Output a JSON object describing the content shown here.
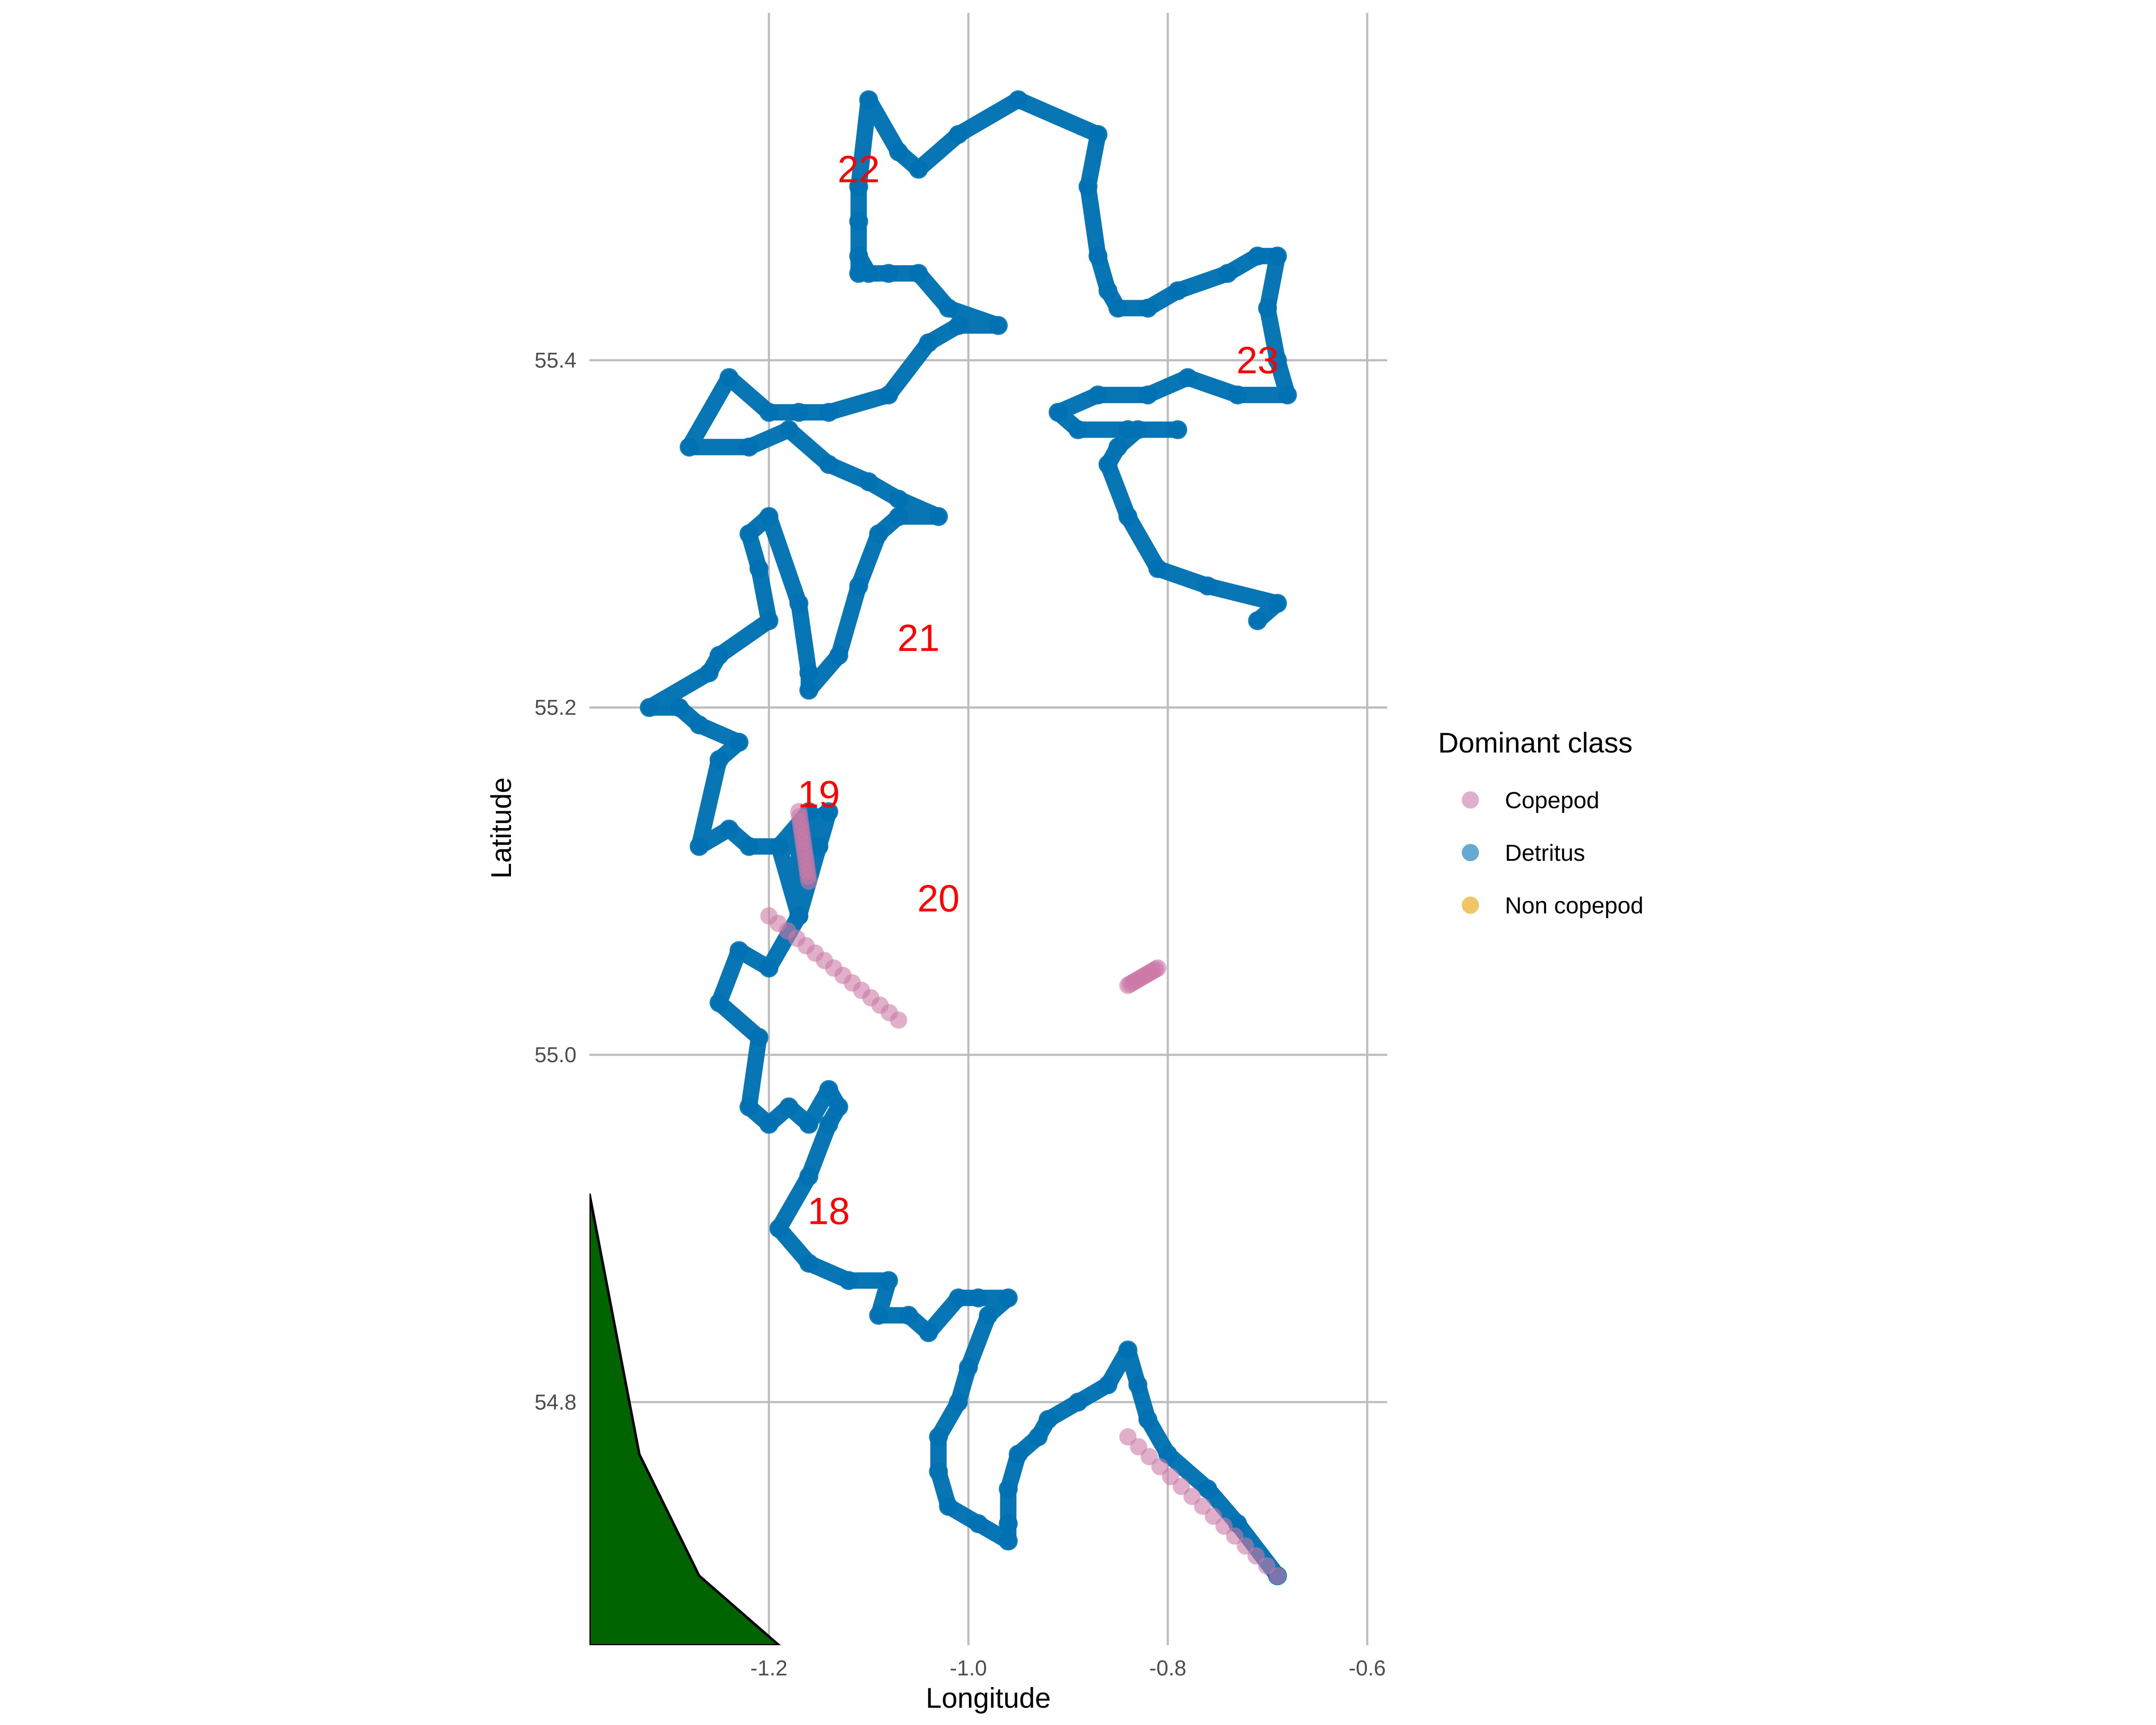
{
  "chart_data": {
    "type": "map-track",
    "xlabel": "Longitude",
    "ylabel": "Latitude",
    "xlim": [
      -1.38,
      -0.58
    ],
    "ylim": [
      54.66,
      55.6
    ],
    "x_ticks": [
      -1.2,
      -1.0,
      -0.8,
      -0.6
    ],
    "x_tick_labels": [
      "-1.2",
      "-1.0",
      "-0.8",
      "-0.6"
    ],
    "y_ticks": [
      54.8,
      55.0,
      55.2,
      55.4
    ],
    "y_tick_labels": [
      "54.8",
      "55.0",
      "55.2",
      "55.4"
    ],
    "grid": true,
    "legend": {
      "title": "Dominant class",
      "position": "right",
      "entries": [
        {
          "label": "Copepod",
          "color": "#cc79a7"
        },
        {
          "label": "Detritus",
          "color": "#0072b2"
        },
        {
          "label": "Non copepod",
          "color": "#e69f00"
        }
      ]
    },
    "track_color": "#0072b2",
    "track": [
      [
        -0.69,
        54.7
      ],
      [
        -0.73,
        54.73
      ],
      [
        -0.76,
        54.75
      ],
      [
        -0.8,
        54.77
      ],
      [
        -0.82,
        54.79
      ],
      [
        -0.83,
        54.81
      ],
      [
        -0.84,
        54.83
      ],
      [
        -0.86,
        54.81
      ],
      [
        -0.89,
        54.8
      ],
      [
        -0.92,
        54.79
      ],
      [
        -0.93,
        54.78
      ],
      [
        -0.95,
        54.77
      ],
      [
        -0.96,
        54.75
      ],
      [
        -0.96,
        54.73
      ],
      [
        -0.96,
        54.72
      ],
      [
        -0.99,
        54.73
      ],
      [
        -1.02,
        54.74
      ],
      [
        -1.03,
        54.76
      ],
      [
        -1.03,
        54.78
      ],
      [
        -1.01,
        54.8
      ],
      [
        -1.0,
        54.82
      ],
      [
        -0.98,
        54.85
      ],
      [
        -0.96,
        54.86
      ],
      [
        -0.99,
        54.86
      ],
      [
        -1.01,
        54.86
      ],
      [
        -1.04,
        54.84
      ],
      [
        -1.06,
        54.85
      ],
      [
        -1.09,
        54.85
      ],
      [
        -1.08,
        54.87
      ],
      [
        -1.12,
        54.87
      ],
      [
        -1.16,
        54.88
      ],
      [
        -1.19,
        54.9
      ],
      [
        -1.16,
        54.93
      ],
      [
        -1.14,
        54.96
      ],
      [
        -1.13,
        54.97
      ],
      [
        -1.14,
        54.98
      ],
      [
        -1.16,
        54.96
      ],
      [
        -1.18,
        54.97
      ],
      [
        -1.2,
        54.96
      ],
      [
        -1.22,
        54.97
      ],
      [
        -1.21,
        55.01
      ],
      [
        -1.25,
        55.03
      ],
      [
        -1.23,
        55.06
      ],
      [
        -1.2,
        55.05
      ],
      [
        -1.17,
        55.08
      ],
      [
        -1.19,
        55.12
      ],
      [
        -1.16,
        55.14
      ],
      [
        -1.15,
        55.12
      ],
      [
        -1.17,
        55.08
      ],
      [
        -1.17,
        55.13
      ],
      [
        -1.14,
        55.14
      ],
      [
        -1.15,
        55.12
      ],
      [
        -1.22,
        55.12
      ],
      [
        -1.24,
        55.13
      ],
      [
        -1.27,
        55.12
      ],
      [
        -1.25,
        55.17
      ],
      [
        -1.23,
        55.18
      ],
      [
        -1.27,
        55.19
      ],
      [
        -1.29,
        55.2
      ],
      [
        -1.32,
        55.2
      ],
      [
        -1.26,
        55.22
      ],
      [
        -1.25,
        55.23
      ],
      [
        -1.2,
        55.25
      ],
      [
        -1.21,
        55.28
      ],
      [
        -1.22,
        55.3
      ],
      [
        -1.2,
        55.31
      ],
      [
        -1.17,
        55.26
      ],
      [
        -1.16,
        55.22
      ],
      [
        -1.16,
        55.21
      ],
      [
        -1.13,
        55.23
      ],
      [
        -1.11,
        55.27
      ],
      [
        -1.09,
        55.3
      ],
      [
        -1.07,
        55.31
      ],
      [
        -1.03,
        55.31
      ],
      [
        -1.07,
        55.32
      ],
      [
        -1.1,
        55.33
      ],
      [
        -1.14,
        55.34
      ],
      [
        -1.18,
        55.36
      ],
      [
        -1.22,
        55.35
      ],
      [
        -1.28,
        55.35
      ],
      [
        -1.24,
        55.39
      ],
      [
        -1.2,
        55.37
      ],
      [
        -1.17,
        55.37
      ],
      [
        -1.14,
        55.37
      ],
      [
        -1.08,
        55.38
      ],
      [
        -1.04,
        55.41
      ],
      [
        -1.01,
        55.42
      ],
      [
        -0.97,
        55.42
      ],
      [
        -1.02,
        55.43
      ],
      [
        -1.05,
        55.45
      ],
      [
        -1.08,
        55.45
      ],
      [
        -1.1,
        55.45
      ],
      [
        -1.11,
        55.46
      ],
      [
        -1.11,
        55.45
      ],
      [
        -1.11,
        55.48
      ],
      [
        -1.11,
        55.5
      ],
      [
        -1.1,
        55.55
      ],
      [
        -1.07,
        55.52
      ],
      [
        -1.05,
        55.51
      ],
      [
        -1.01,
        55.53
      ],
      [
        -0.95,
        55.55
      ],
      [
        -0.87,
        55.53
      ],
      [
        -0.88,
        55.5
      ],
      [
        -0.87,
        55.46
      ],
      [
        -0.86,
        55.44
      ],
      [
        -0.85,
        55.43
      ],
      [
        -0.82,
        55.43
      ],
      [
        -0.79,
        55.44
      ],
      [
        -0.74,
        55.45
      ],
      [
        -0.71,
        55.46
      ],
      [
        -0.69,
        55.46
      ],
      [
        -0.7,
        55.43
      ],
      [
        -0.69,
        55.4
      ],
      [
        -0.68,
        55.38
      ],
      [
        -0.73,
        55.38
      ],
      [
        -0.78,
        55.39
      ],
      [
        -0.82,
        55.38
      ],
      [
        -0.87,
        55.38
      ],
      [
        -0.91,
        55.37
      ],
      [
        -0.89,
        55.36
      ],
      [
        -0.84,
        55.36
      ],
      [
        -0.79,
        55.36
      ],
      [
        -0.83,
        55.36
      ],
      [
        -0.85,
        55.35
      ],
      [
        -0.86,
        55.34
      ],
      [
        -0.84,
        55.31
      ],
      [
        -0.81,
        55.28
      ],
      [
        -0.76,
        55.27
      ],
      [
        -0.69,
        55.26
      ],
      [
        -0.71,
        55.25
      ]
    ],
    "copepod_segments": [
      [
        [
          -0.84,
          54.78
        ],
        [
          -0.69,
          54.7
        ]
      ],
      [
        [
          -1.2,
          55.08
        ],
        [
          -1.07,
          55.02
        ]
      ],
      [
        [
          -0.84,
          55.04
        ],
        [
          -0.81,
          55.05
        ]
      ],
      [
        [
          -1.17,
          55.14
        ],
        [
          -1.16,
          55.1
        ]
      ]
    ],
    "day_labels": [
      {
        "text": "18",
        "x": -1.14,
        "y": 54.91
      },
      {
        "text": "19",
        "x": -1.15,
        "y": 55.15
      },
      {
        "text": "20",
        "x": -1.03,
        "y": 55.09
      },
      {
        "text": "21",
        "x": -1.05,
        "y": 55.24
      },
      {
        "text": "22",
        "x": -1.11,
        "y": 55.51
      },
      {
        "text": "23",
        "x": -0.71,
        "y": 55.4
      }
    ],
    "land": {
      "color": "#006400",
      "outline": [
        [
          -1.38,
          54.92
        ],
        [
          -1.33,
          54.77
        ],
        [
          -1.27,
          54.7
        ],
        [
          -1.19,
          54.66
        ],
        [
          -1.38,
          54.66
        ]
      ]
    }
  }
}
